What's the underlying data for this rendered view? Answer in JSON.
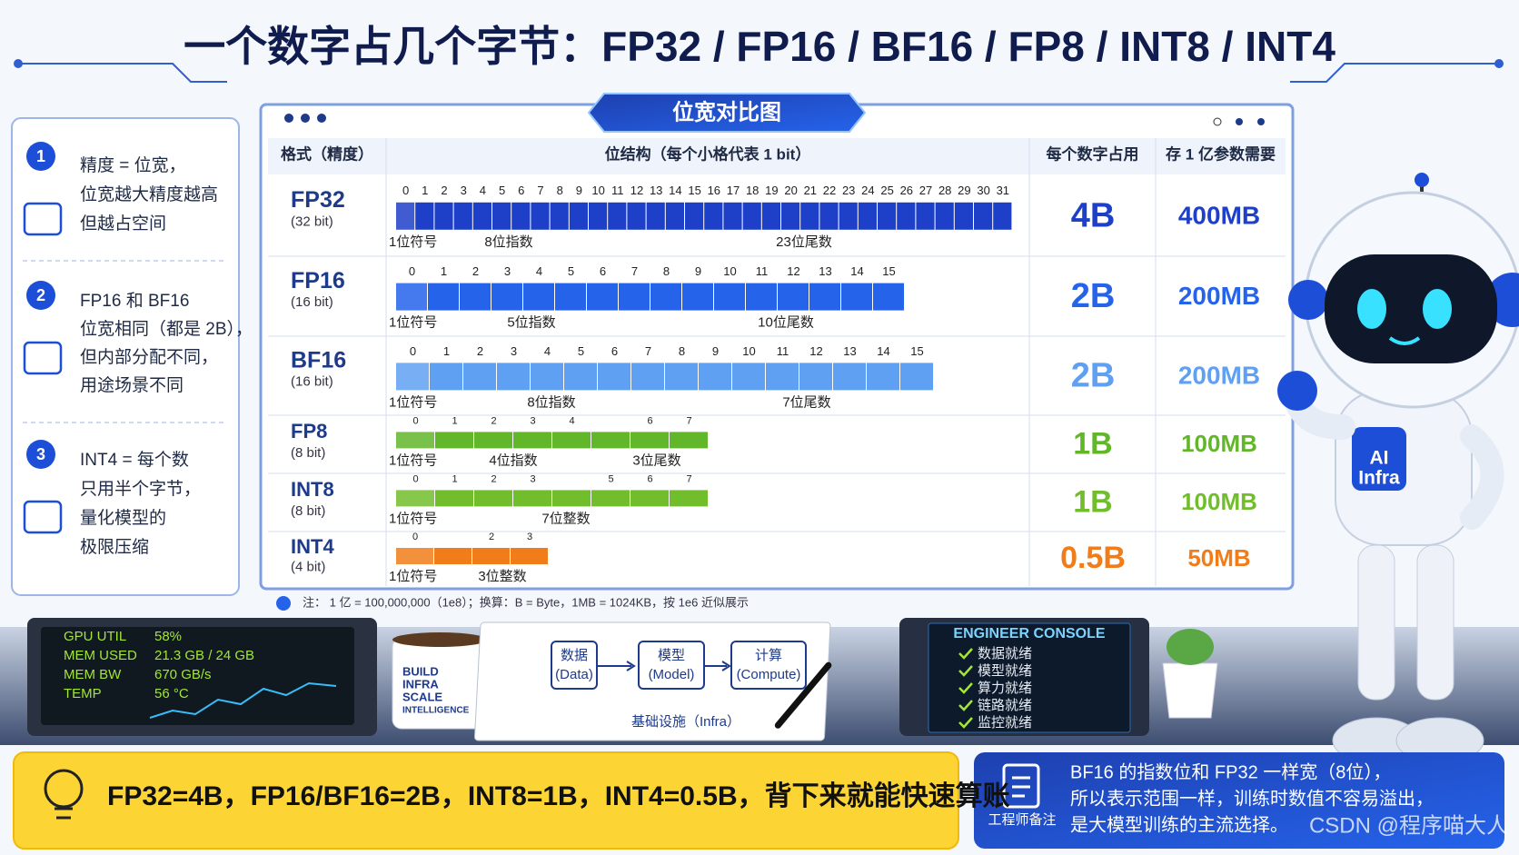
{
  "title": "一个数字占几个字节：FP32 / FP16 / BF16 / FP8 / INT8 / INT4",
  "panel_title": "位宽对比图",
  "left_notes": [
    {
      "number": "1",
      "lines": [
        "精度 = 位宽，",
        "位宽越大精度越高",
        "但越占空间"
      ]
    },
    {
      "number": "2",
      "lines": [
        "FP16 和 BF16",
        "位宽相同（都是 2B），",
        "但内部分配不同，",
        "用途场景不同"
      ]
    },
    {
      "number": "3",
      "lines": [
        "INT4 = 每个数",
        "只用半个字节，",
        "量化模型的",
        "极限压缩"
      ]
    }
  ],
  "table": {
    "headers": [
      "格式（精度）",
      "位结构（每个小格代表 1 bit）",
      "每个数字占用",
      "存 1 亿参数需要"
    ],
    "rows": [
      {
        "format": "FP32",
        "bits": "(32 bit)",
        "color": "#1e40c8",
        "bit_labels": [
          0,
          1,
          2,
          3,
          4,
          5,
          6,
          7,
          8,
          9,
          10,
          11,
          12,
          13,
          14,
          15,
          16,
          17,
          18,
          19,
          20,
          21,
          22,
          23,
          24,
          25,
          26,
          27,
          28,
          29,
          30,
          31
        ],
        "segments": [
          "1位符号",
          "8位指数",
          "23位尾数"
        ],
        "size": "4B",
        "memory": "400MB"
      },
      {
        "format": "FP16",
        "bits": "(16 bit)",
        "color": "#2563eb",
        "bit_labels": [
          0,
          1,
          2,
          3,
          4,
          5,
          6,
          7,
          8,
          9,
          10,
          11,
          12,
          13,
          14,
          15
        ],
        "segments": [
          "1位符号",
          "5位指数",
          "10位尾数"
        ],
        "size": "2B",
        "memory": "200MB"
      },
      {
        "format": "BF16",
        "bits": "(16 bit)",
        "color": "#5fa0f2",
        "bit_labels": [
          0,
          1,
          2,
          3,
          4,
          5,
          6,
          7,
          8,
          9,
          10,
          11,
          12,
          13,
          14,
          15
        ],
        "segments": [
          "1位符号",
          "8位指数",
          "7位尾数"
        ],
        "size": "2B",
        "memory": "200MB"
      },
      {
        "format": "FP8",
        "bits": "(8 bit)",
        "color": "#62b62a",
        "bit_labels": [
          0,
          1,
          2,
          3,
          4,
          null,
          6,
          7
        ],
        "segments": [
          "1位符号",
          "4位指数",
          "3位尾数"
        ],
        "size": "1B",
        "memory": "100MB"
      },
      {
        "format": "INT8",
        "bits": "(8 bit)",
        "color": "#72bd2c",
        "bit_labels": [
          0,
          1,
          2,
          3,
          null,
          5,
          6,
          7
        ],
        "segments": [
          "1位符号",
          "7位整数"
        ],
        "size": "1B",
        "memory": "100MB"
      },
      {
        "format": "INT4",
        "bits": "(4 bit)",
        "color": "#f07c1a",
        "bit_labels": [
          0,
          null,
          2,
          3
        ],
        "segments": [
          "1位符号",
          "3位整数"
        ],
        "size": "0.5B",
        "memory": "50MB"
      }
    ]
  },
  "note": "注： 1 亿 = 100,000,000（1e8）；换算：B = Byte，1MB = 1024KB，按 1e6 近似展示",
  "gpu": [
    [
      "GPU UTIL",
      "58%"
    ],
    [
      "MEM USED",
      "21.3 GB / 24 GB"
    ],
    [
      "MEM BW",
      "670 GB/s"
    ],
    [
      "TEMP",
      "56 °C"
    ]
  ],
  "mug": [
    "BUILD",
    "INFRA",
    "SCALE",
    "INTELLIGENCE"
  ],
  "notebook": {
    "nodes": [
      [
        "数据",
        "(Data)"
      ],
      [
        "模型",
        "(Model)"
      ],
      [
        "计算",
        "(Compute)"
      ]
    ],
    "caption": "基础设施（Infra）"
  },
  "console": {
    "title": "ENGINEER CONSOLE",
    "items": [
      "数据就绪",
      "模型就绪",
      "算力就绪",
      "链路就绪",
      "监控就绪"
    ]
  },
  "robot_badge": [
    "AI",
    "Infra"
  ],
  "summary": "FP32=4B，FP16/BF16=2B，INT8=1B，INT4=0.5B，背下来就能快速算账",
  "remark": {
    "label": "工程师备注",
    "lines": [
      "BF16 的指数位和 FP32 一样宽（8位），",
      "所以表示范围一样，训练时数值不容易溢出，",
      "是大模型训练的主流选择。"
    ]
  },
  "watermark": "CSDN @程序喵大人"
}
